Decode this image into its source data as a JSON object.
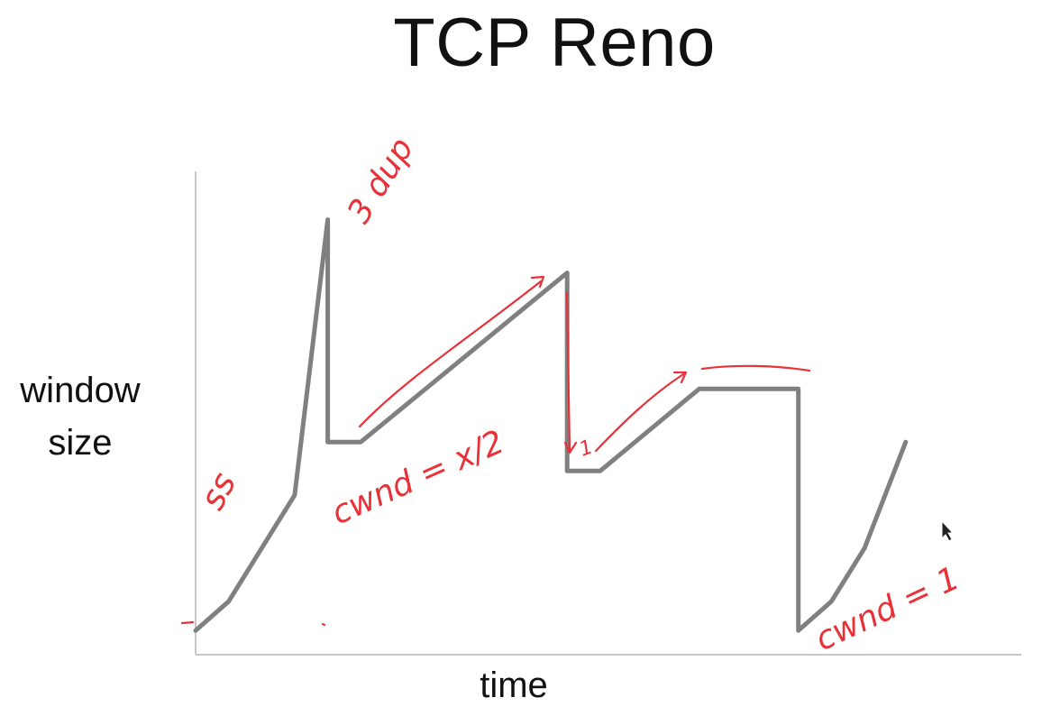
{
  "chart_data": {
    "type": "line",
    "title": "TCP Reno",
    "xlabel": "time",
    "ylabel": "window size",
    "grid": false,
    "legend": "none",
    "xlim": [
      0,
      100
    ],
    "ylim": [
      0,
      100
    ],
    "series": [
      {
        "color": "#808080",
        "x": [
          0,
          4,
          12,
          16,
          16,
          20,
          45,
          45,
          49,
          61,
          73,
          73,
          77,
          81,
          86
        ],
        "y": [
          5,
          11,
          33,
          90,
          44,
          44,
          79,
          38,
          38,
          55,
          55,
          5,
          11,
          22,
          44
        ]
      }
    ],
    "annotations": {
      "color": "#e8323a",
      "slow_start": "ss",
      "triple_dup": "3 dup",
      "cwnd_half": "cwnd = x/2",
      "one": "1",
      "cwnd_one": "cwnd = 1"
    }
  }
}
